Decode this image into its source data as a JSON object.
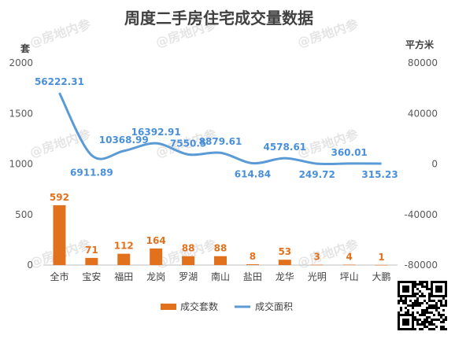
{
  "chart_data": {
    "type": "bar+line",
    "title": "周度二手房住宅成交量数据",
    "categories": [
      "全市",
      "宝安",
      "福田",
      "龙岗",
      "罗湖",
      "南山",
      "盐田",
      "龙华",
      "光明",
      "坪山",
      "大鹏"
    ],
    "left_axis": {
      "unit": "套",
      "ylim": [
        0,
        2000
      ],
      "ticks": [
        "0",
        "500",
        "1000",
        "1500",
        "2000"
      ]
    },
    "right_axis": {
      "unit": "平方米",
      "ylim": [
        -80000,
        80000
      ],
      "ticks": [
        "-80000",
        "-40000",
        "0",
        "40000",
        "80000"
      ]
    },
    "series": [
      {
        "name": "成交套数",
        "type": "bar",
        "color": "#E2711D",
        "values": [
          592,
          71,
          112,
          164,
          88,
          88,
          8,
          53,
          3,
          4,
          1
        ],
        "labels": [
          "592",
          "71",
          "112",
          "164",
          "88",
          "88",
          "8",
          "53",
          "3",
          "4",
          "1"
        ]
      },
      {
        "name": "成交面积",
        "type": "line",
        "color": "#5B9BD5",
        "values": [
          56222.31,
          6911.89,
          10368.99,
          16392.91,
          7550.5,
          8879.61,
          614.84,
          4578.61,
          249.72,
          360.01,
          315.23
        ],
        "labels": [
          "56222.31",
          "6911.89",
          "10368.99",
          "16392.91",
          "7550.5",
          "8879.61",
          "614.84",
          "4578.61",
          "249.72",
          "360.01",
          "315.23"
        ]
      }
    ],
    "legend_position": "bottom",
    "grid": false
  },
  "watermark": "@房地内参"
}
